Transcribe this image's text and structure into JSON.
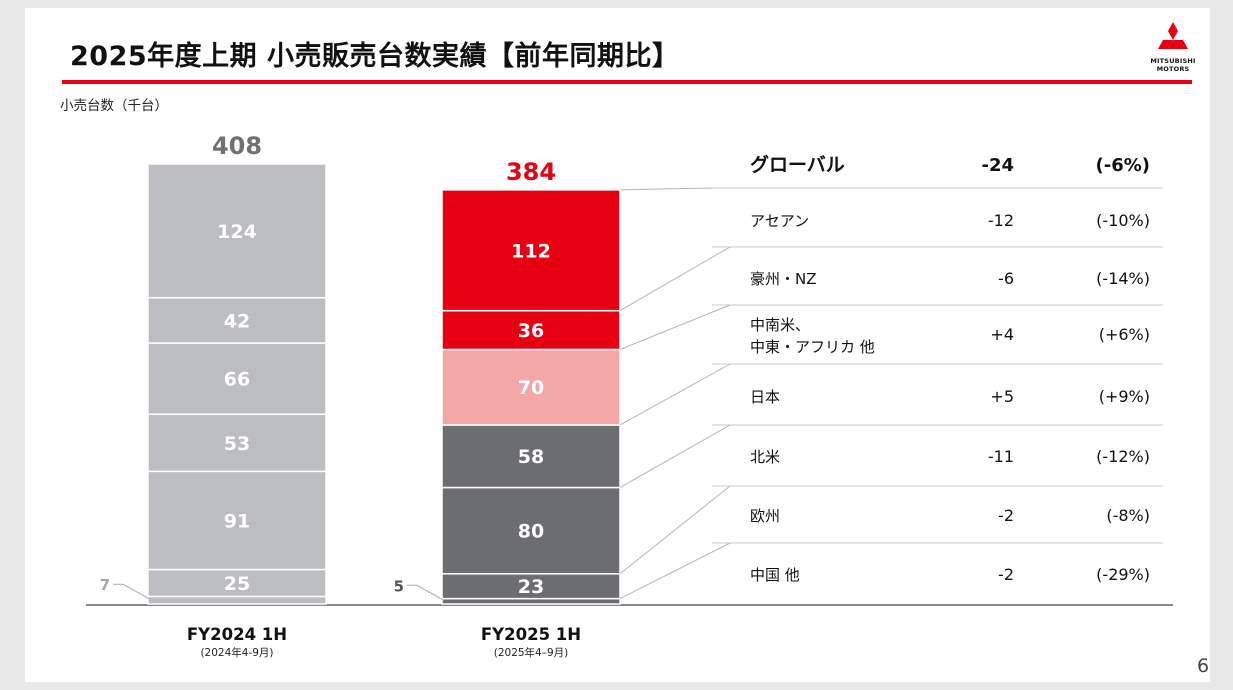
{
  "slide": {
    "title": "2025年度上期 小売販売台数実績【前年同期比】",
    "unit_label": "小売台数（千台）",
    "page_number": "6",
    "logo": {
      "line1": "MITSUBISHI",
      "line2": "MOTORS"
    }
  },
  "chart_data": {
    "type": "bar",
    "stacked": true,
    "categories": [
      {
        "label": "FY2024 1H",
        "sublabel": "(2024年4-9月)"
      },
      {
        "label": "FY2025 1H",
        "sublabel": "(2025年4–9月)"
      }
    ],
    "totals": [
      "408",
      "384"
    ],
    "series": [
      {
        "name": "アセアン",
        "values": [
          124,
          112
        ],
        "labels": [
          "124",
          "112"
        ],
        "color_prev": "#bcbdc0",
        "color_curr": "#e60012",
        "delta": "-12",
        "pct": "(-10%)"
      },
      {
        "name": "豪州・NZ",
        "values": [
          42,
          36
        ],
        "labels": [
          "42",
          "36"
        ],
        "color_prev": "#bcbdc0",
        "color_curr": "#e60012",
        "delta": "-6",
        "pct": "(-14%)"
      },
      {
        "name": "中南米、\n中東・アフリカ 他",
        "values": [
          66,
          70
        ],
        "labels": [
          "66",
          "70"
        ],
        "color_prev": "#bcbdc0",
        "color_curr": "#f4a7a7",
        "delta": "+4",
        "pct": "(+6%)"
      },
      {
        "name": "日本",
        "values": [
          53,
          58
        ],
        "labels": [
          "53",
          "58"
        ],
        "color_prev": "#bcbdc0",
        "color_curr": "#6c6d70",
        "delta": "+5",
        "pct": "(+9%)"
      },
      {
        "name": "北米",
        "values": [
          91,
          80
        ],
        "labels": [
          "91",
          "80"
        ],
        "color_prev": "#bcbdc0",
        "color_curr": "#6c6d70",
        "delta": "-11",
        "pct": "(-12%)"
      },
      {
        "name": "欧州",
        "values": [
          25,
          23
        ],
        "labels": [
          "25",
          "23"
        ],
        "color_prev": "#bcbdc0",
        "color_curr": "#6c6d70",
        "delta": "-2",
        "pct": "(-8%)"
      },
      {
        "name": "中国 他",
        "values": [
          7,
          5
        ],
        "labels": [
          "7",
          "5"
        ],
        "color_prev": "#bcbdc0",
        "color_curr": "#6c6d70",
        "delta": "-2",
        "pct": "(-29%)"
      }
    ],
    "global": {
      "name": "グローバル",
      "delta": "-24",
      "pct": "(-6%)"
    },
    "total_colors": [
      "#707070",
      "#e60012"
    ]
  }
}
